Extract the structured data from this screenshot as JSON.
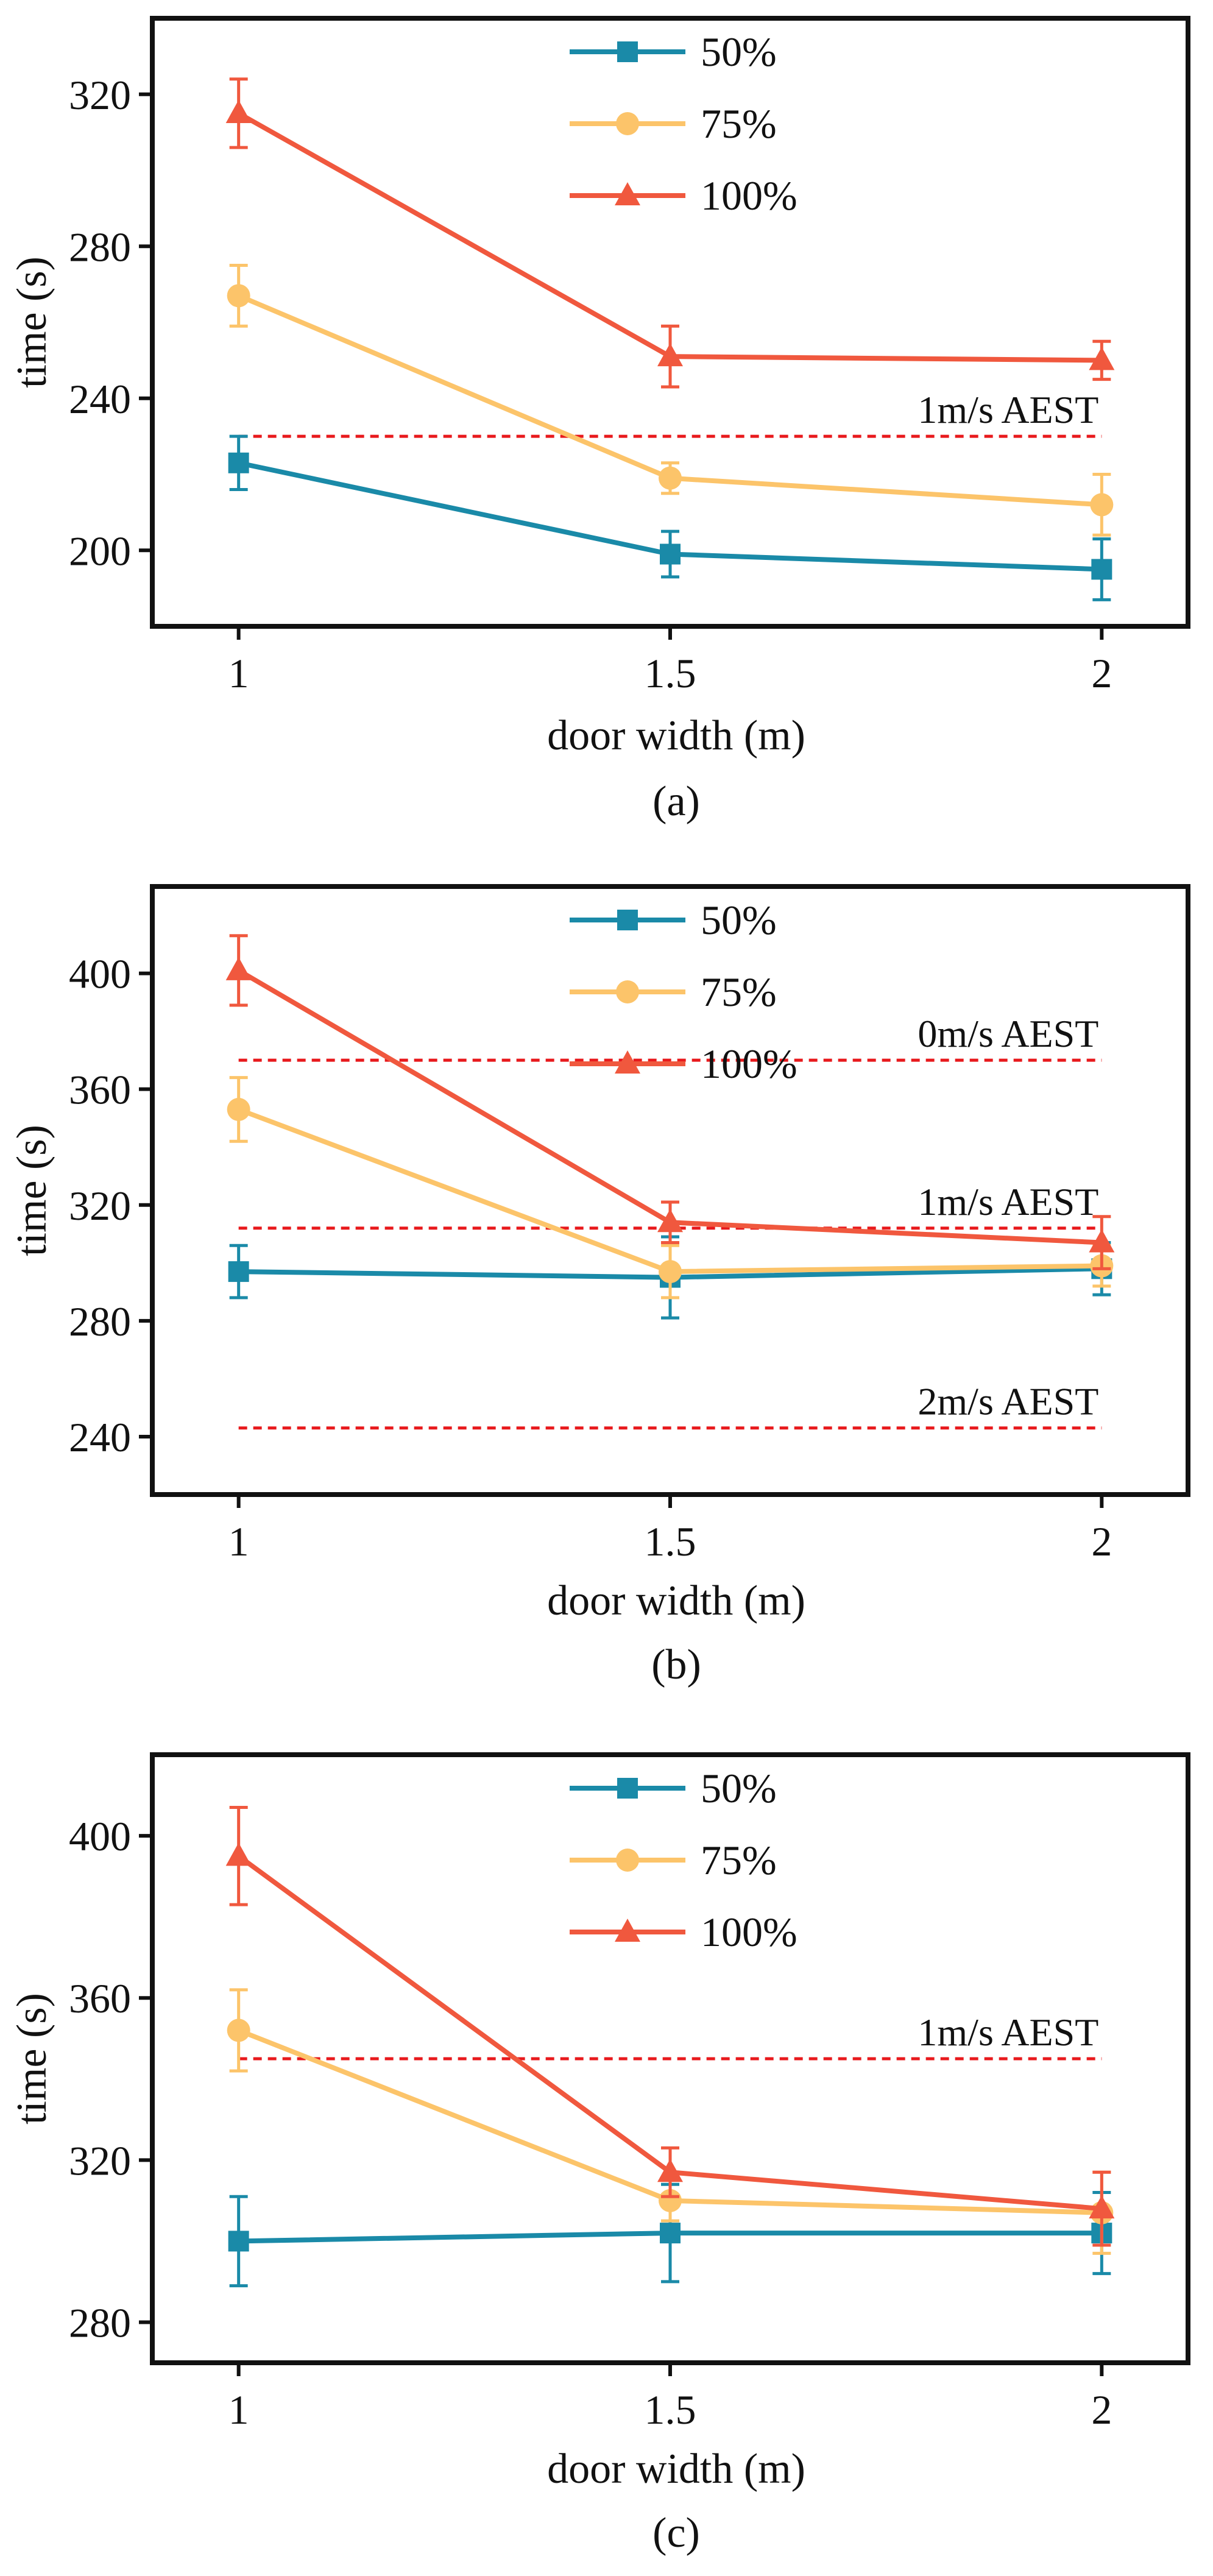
{
  "chart_data": [
    {
      "type": "line",
      "caption": "(a)",
      "xlabel": "door width (m)",
      "ylabel": "time (s)",
      "x": [
        1,
        1.5,
        2
      ],
      "x_tick_labels": [
        "1",
        "1.5",
        "2"
      ],
      "xlim": [
        0.9,
        2.1
      ],
      "ylim": [
        180,
        340
      ],
      "y_ticks": [
        200,
        240,
        280,
        320
      ],
      "y_tick_labels": [
        "200",
        "240",
        "280",
        "320"
      ],
      "series": [
        {
          "name": "50%",
          "color": "#1a8aa8",
          "marker": "square",
          "values": [
            223,
            199,
            195
          ],
          "errors": [
            7,
            6,
            8
          ]
        },
        {
          "name": "75%",
          "color": "#fcc46a",
          "marker": "circle",
          "values": [
            267,
            219,
            212
          ],
          "errors": [
            8,
            4,
            8
          ]
        },
        {
          "name": "100%",
          "color": "#f0583e",
          "marker": "triangle",
          "values": [
            315,
            251,
            250
          ],
          "errors": [
            9,
            8,
            5
          ]
        }
      ],
      "reference_lines": [
        {
          "label": "1m/s AEST",
          "value": 230,
          "color": "#e8191c"
        }
      ],
      "legend_position": "top-center"
    },
    {
      "type": "line",
      "caption": "(b)",
      "xlabel": "door width (m)",
      "ylabel": "time (s)",
      "x": [
        1,
        1.5,
        2
      ],
      "x_tick_labels": [
        "1",
        "1.5",
        "2"
      ],
      "xlim": [
        0.9,
        2.1
      ],
      "ylim": [
        220,
        430
      ],
      "y_ticks": [
        240,
        280,
        320,
        360,
        400
      ],
      "y_tick_labels": [
        "240",
        "280",
        "320",
        "360",
        "400"
      ],
      "series": [
        {
          "name": "50%",
          "color": "#1a8aa8",
          "marker": "square",
          "values": [
            297,
            295,
            298
          ],
          "errors": [
            9,
            14,
            9
          ]
        },
        {
          "name": "75%",
          "color": "#fcc46a",
          "marker": "circle",
          "values": [
            353,
            297,
            299
          ],
          "errors": [
            11,
            9,
            7
          ]
        },
        {
          "name": "100%",
          "color": "#f0583e",
          "marker": "triangle",
          "values": [
            401,
            314,
            307
          ],
          "errors": [
            12,
            7,
            9
          ]
        }
      ],
      "reference_lines": [
        {
          "label": "0m/s AEST",
          "value": 370,
          "color": "#e8191c"
        },
        {
          "label": "1m/s AEST",
          "value": 312,
          "color": "#e8191c"
        },
        {
          "label": "2m/s AEST",
          "value": 243,
          "color": "#e8191c"
        }
      ],
      "legend_position": "top-center"
    },
    {
      "type": "line",
      "caption": "(c)",
      "xlabel": "door width (m)",
      "ylabel": "time (s)",
      "x": [
        1,
        1.5,
        2
      ],
      "x_tick_labels": [
        "1",
        "1.5",
        "2"
      ],
      "xlim": [
        0.9,
        2.1
      ],
      "ylim": [
        270,
        420
      ],
      "y_ticks": [
        280,
        320,
        360,
        400
      ],
      "y_tick_labels": [
        "280",
        "320",
        "360",
        "400"
      ],
      "series": [
        {
          "name": "50%",
          "color": "#1a8aa8",
          "marker": "square",
          "values": [
            300,
            302,
            302
          ],
          "errors": [
            11,
            12,
            10
          ]
        },
        {
          "name": "75%",
          "color": "#fcc46a",
          "marker": "circle",
          "values": [
            352,
            310,
            307
          ],
          "errors": [
            10,
            5,
            10
          ]
        },
        {
          "name": "100%",
          "color": "#f0583e",
          "marker": "triangle",
          "values": [
            395,
            317,
            308
          ],
          "errors": [
            12,
            6,
            9
          ]
        }
      ],
      "reference_lines": [
        {
          "label": "1m/s AEST",
          "value": 345,
          "color": "#e8191c"
        }
      ],
      "legend_position": "top-center"
    }
  ]
}
